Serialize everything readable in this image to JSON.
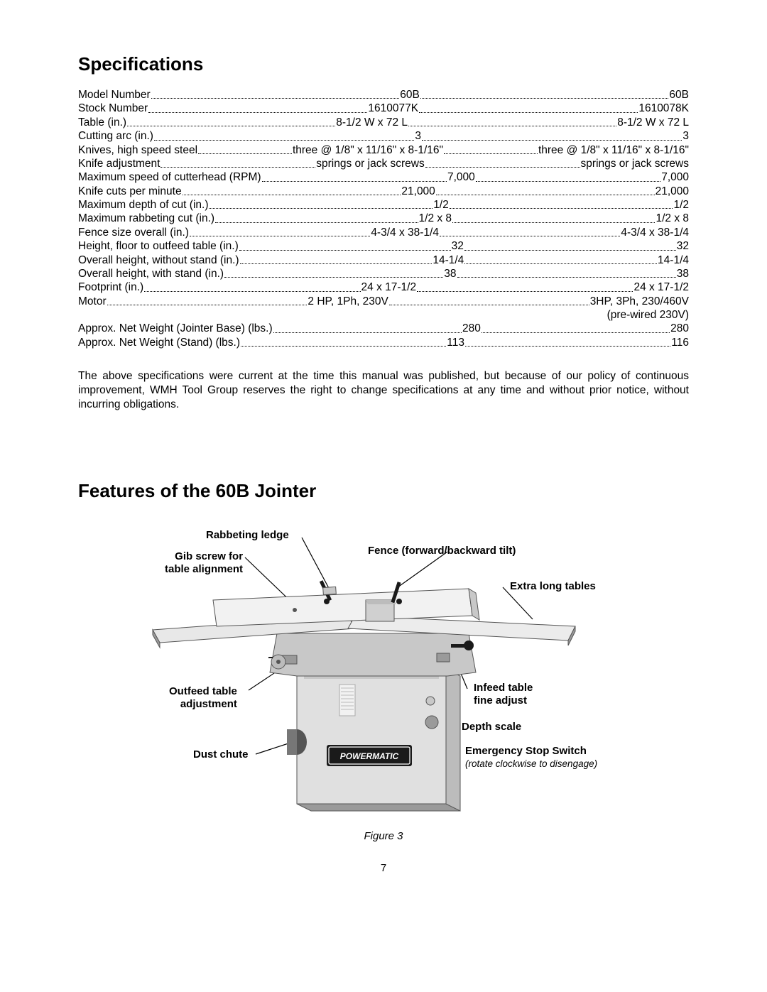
{
  "headings": {
    "specs": "Specifications",
    "features": "Features of the 60B Jointer"
  },
  "spec_rows": [
    {
      "label": "Model Number",
      "v1": "60B",
      "v2": "60B"
    },
    {
      "label": "Stock Number",
      "v1": "1610077K",
      "v2": "1610078K"
    },
    {
      "label": "Table (in.)",
      "v1": "8-1/2 W x 72 L",
      "v2": "8-1/2 W x 72 L"
    },
    {
      "label": "Cutting arc (in.)",
      "v1": "3",
      "v2": "3"
    },
    {
      "label": "Knives, high speed steel",
      "v1": "three @ 1/8\" x 11/16\" x 8-1/16\"",
      "v2": "three @ 1/8\" x 11/16\" x 8-1/16\""
    },
    {
      "label": "Knife adjustment",
      "v1": "springs or jack screws",
      "v2": "springs or jack screws"
    },
    {
      "label": "Maximum speed of cutterhead (RPM)",
      "v1": "7,000",
      "v2": "7,000"
    },
    {
      "label": "Knife cuts per minute",
      "v1": "21,000",
      "v2": "21,000"
    },
    {
      "label": "Maximum depth of cut (in.)",
      "v1": "1/2",
      "v2": "1/2"
    },
    {
      "label": "Maximum rabbeting cut (in.)",
      "v1": "1/2 x 8",
      "v2": "1/2 x 8"
    },
    {
      "label": "Fence size overall (in.)",
      "v1": "4-3/4 x 38-1/4",
      "v2": "4-3/4 x 38-1/4"
    },
    {
      "label": "Height, floor to outfeed table (in.)",
      "v1": "32",
      "v2": "32"
    },
    {
      "label": "Overall height, without stand (in.)",
      "v1": "14-1/4",
      "v2": "14-1/4"
    },
    {
      "label": "Overall height, with stand (in.)",
      "v1": "38",
      "v2": "38"
    },
    {
      "label": "Footprint (in.)",
      "v1": "24  x 17-1/2",
      "v2": "24  x 17-1/2"
    },
    {
      "label": "Motor",
      "v1": "2 HP, 1Ph, 230V",
      "v2": "3HP, 3Ph, 230/460V"
    }
  ],
  "motor_note": "(pre-wired 230V)",
  "spec_rows_after": [
    {
      "label": "Approx. Net Weight (Jointer Base) (lbs.)",
      "v1": "280",
      "v2": "280"
    },
    {
      "label": "Approx. Net Weight (Stand) (lbs.)",
      "v1": "113",
      "v2": "116"
    }
  ],
  "footnote": "The above specifications were current at the time this manual was published, but because of our policy of continuous improvement, WMH Tool Group reserves the right to change specifications at any time and without prior notice, without incurring obligations.",
  "callouts": {
    "rabbeting": "Rabbeting ledge",
    "gib1": "Gib screw for",
    "gib2": "table alignment",
    "fence": "Fence (forward/backward tilt)",
    "extra": "Extra long tables",
    "outfeed1": "Outfeed table",
    "outfeed2": "adjustment",
    "dust": "Dust  chute",
    "infeed1": "Infeed table",
    "infeed2": "fine adjust",
    "depth": "Depth scale",
    "estop": "Emergency Stop Switch",
    "estop_sub": "(rotate clockwise to disengage)"
  },
  "figure_caption": "Figure 3",
  "page_number": "7",
  "brand_text": "POWERMATIC",
  "colors": {
    "ink": "#000000",
    "bg": "#ffffff",
    "machine_light": "#e8e8e8",
    "machine_mid": "#c8c8c8",
    "machine_shadow": "#9a9a9a",
    "machine_dark": "#555555",
    "black": "#1a1a1a"
  }
}
